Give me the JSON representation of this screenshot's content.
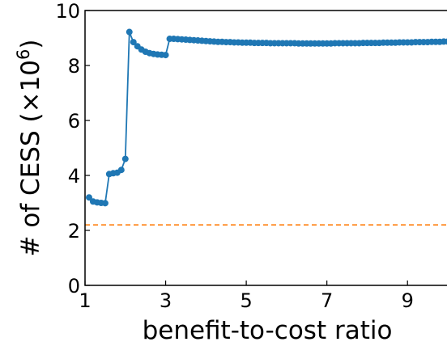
{
  "chart_data": {
    "type": "line",
    "xlabel": "benefit-to-cost ratio",
    "ylabel": "# of CESS (×10",
    "ylabel_exponent": "6",
    "ylabel_close": ")",
    "xlim": [
      1,
      10
    ],
    "ylim": [
      0,
      10
    ],
    "x_ticks": [
      1,
      3,
      5,
      7,
      9
    ],
    "x_tick_labels": [
      "1",
      "3",
      "5",
      "7",
      "9"
    ],
    "y_ticks": [
      0,
      2,
      4,
      6,
      8,
      10
    ],
    "y_tick_labels": [
      "0",
      "2",
      "4",
      "6",
      "8",
      "10"
    ],
    "grid": false,
    "series": [
      {
        "color": "#1f77b4",
        "marker": "circle",
        "x": [
          1.1,
          1.2,
          1.3,
          1.4,
          1.5,
          1.6,
          1.7,
          1.8,
          1.9,
          2.0,
          2.1,
          2.2,
          2.3,
          2.4,
          2.5,
          2.6,
          2.7,
          2.8,
          2.9,
          3.0,
          3.1,
          3.2,
          3.3,
          3.4,
          3.5,
          3.6,
          3.7,
          3.8,
          3.9,
          4.0,
          4.1,
          4.2,
          4.3,
          4.4,
          4.5,
          4.6,
          4.7,
          4.8,
          4.9,
          5.0,
          5.1,
          5.2,
          5.3,
          5.4,
          5.5,
          5.6,
          5.7,
          5.8,
          5.9,
          6.0,
          6.1,
          6.2,
          6.3,
          6.4,
          6.5,
          6.6,
          6.7,
          6.8,
          6.9,
          7.0,
          7.1,
          7.2,
          7.3,
          7.4,
          7.5,
          7.6,
          7.7,
          7.8,
          7.9,
          8.0,
          8.1,
          8.2,
          8.3,
          8.4,
          8.5,
          8.6,
          8.7,
          8.8,
          8.9,
          9.0,
          9.1,
          9.2,
          9.3,
          9.4,
          9.5,
          9.6,
          9.7,
          9.8,
          9.9,
          10.0
        ],
        "y": [
          3.2,
          3.05,
          3.02,
          3.0,
          2.99,
          4.05,
          4.08,
          4.1,
          4.2,
          4.6,
          9.22,
          8.85,
          8.7,
          8.58,
          8.5,
          8.45,
          8.42,
          8.4,
          8.39,
          8.38,
          8.97,
          8.97,
          8.96,
          8.95,
          8.94,
          8.93,
          8.92,
          8.91,
          8.9,
          8.89,
          8.88,
          8.87,
          8.86,
          8.86,
          8.85,
          8.85,
          8.84,
          8.84,
          8.83,
          8.83,
          8.83,
          8.82,
          8.82,
          8.82,
          8.82,
          8.81,
          8.81,
          8.81,
          8.81,
          8.81,
          8.81,
          8.81,
          8.8,
          8.8,
          8.8,
          8.8,
          8.8,
          8.8,
          8.8,
          8.8,
          8.8,
          8.81,
          8.81,
          8.81,
          8.81,
          8.81,
          8.81,
          8.81,
          8.82,
          8.82,
          8.82,
          8.82,
          8.82,
          8.83,
          8.83,
          8.83,
          8.83,
          8.84,
          8.84,
          8.84,
          8.84,
          8.85,
          8.85,
          8.85,
          8.85,
          8.86,
          8.86,
          8.86,
          8.87,
          8.87
        ]
      },
      {
        "color": "#ff7f0e",
        "style": "dashed",
        "x": [
          1,
          10
        ],
        "y": [
          2.2,
          2.2
        ]
      }
    ]
  }
}
